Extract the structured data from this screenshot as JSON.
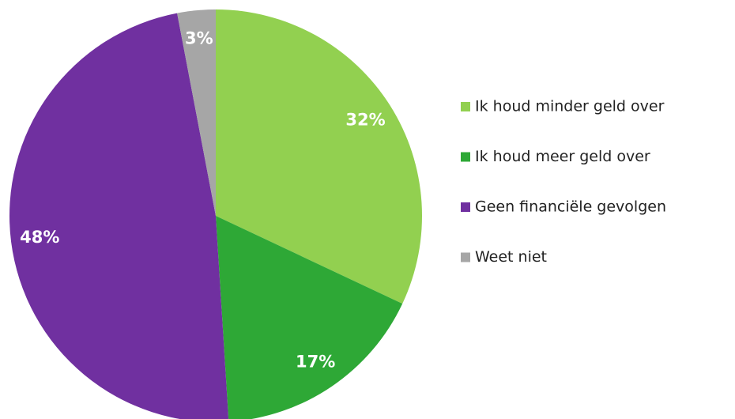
{
  "chart_data": {
    "type": "pie",
    "categories": [
      "Ik houd minder geld over",
      "Ik houd meer geld over",
      "Geen financiële gevolgen",
      "Weet niet"
    ],
    "values": [
      32,
      17,
      48,
      3
    ],
    "value_labels": [
      "32%",
      "17%",
      "48%",
      "3%"
    ],
    "colors": [
      "#92d050",
      "#2ea836",
      "#7030a0",
      "#a6a6a6"
    ],
    "legend": "right"
  }
}
